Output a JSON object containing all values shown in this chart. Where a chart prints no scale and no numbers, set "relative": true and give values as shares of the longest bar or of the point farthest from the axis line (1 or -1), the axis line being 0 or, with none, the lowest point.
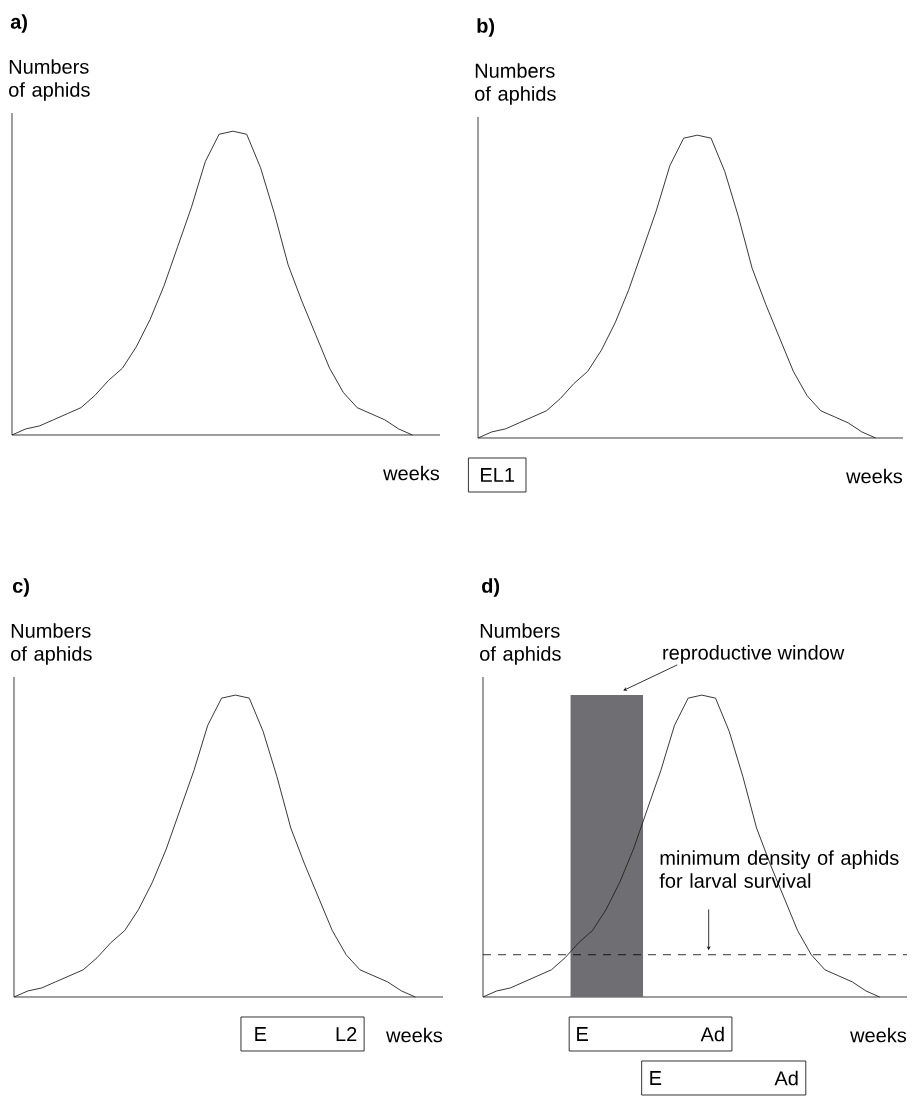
{
  "chart_data": [
    {
      "type": "line",
      "title": "a)",
      "ylabel": "Numbers of aphids",
      "xlabel": "weeks",
      "relative": true,
      "categories": [
        null,
        null,
        null,
        null,
        null,
        null,
        null,
        null,
        null,
        null,
        null,
        null,
        null,
        null,
        null,
        null,
        null,
        null,
        null,
        null,
        null,
        null,
        null,
        null,
        null,
        null,
        null,
        null,
        null,
        null,
        null,
        null
      ],
      "series": [
        {
          "color": "#222222",
          "values": [
            0,
            0.02,
            0.03,
            0.05,
            0.07,
            0.09,
            0.13,
            0.18,
            0.22,
            0.29,
            0.38,
            0.49,
            0.62,
            0.75,
            0.9,
            0.99,
            1,
            0.99,
            0.88,
            0.73,
            0.56,
            0.44,
            0.33,
            0.22,
            0.14,
            0.09,
            0.07,
            0.05,
            0.02,
            0,
            null,
            null
          ]
        }
      ]
    },
    {
      "type": "line",
      "title": "b)",
      "ylabel": "Numbers of aphids",
      "xlabel": "weeks",
      "relative": true,
      "categories": [
        null,
        null,
        null,
        null,
        null,
        null,
        null,
        null,
        null,
        null,
        null,
        null,
        null,
        null,
        null,
        null,
        null,
        null,
        null,
        null,
        null,
        null,
        null,
        null,
        null,
        null,
        null,
        null,
        null,
        null,
        null,
        null
      ],
      "series": [
        {
          "color": "#222222",
          "values": [
            0,
            0.02,
            0.03,
            0.05,
            0.07,
            0.09,
            0.13,
            0.18,
            0.22,
            0.29,
            0.38,
            0.49,
            0.62,
            0.75,
            0.9,
            0.99,
            1,
            0.99,
            0.88,
            0.73,
            0.56,
            0.44,
            0.33,
            0.22,
            0.14,
            0.09,
            0.07,
            0.05,
            0.02,
            0,
            null,
            null
          ]
        }
      ],
      "annotations": [
        "EL1"
      ]
    },
    {
      "type": "line",
      "title": "c)",
      "ylabel": "Numbers of aphids",
      "xlabel": "weeks",
      "relative": true,
      "categories": [
        null,
        null,
        null,
        null,
        null,
        null,
        null,
        null,
        null,
        null,
        null,
        null,
        null,
        null,
        null,
        null,
        null,
        null,
        null,
        null,
        null,
        null,
        null,
        null,
        null,
        null,
        null,
        null,
        null,
        null,
        null,
        null
      ],
      "series": [
        {
          "color": "#222222",
          "values": [
            0,
            0.02,
            0.03,
            0.05,
            0.07,
            0.09,
            0.13,
            0.18,
            0.22,
            0.29,
            0.38,
            0.49,
            0.62,
            0.75,
            0.9,
            0.99,
            1,
            0.99,
            0.88,
            0.73,
            0.56,
            0.44,
            0.33,
            0.22,
            0.14,
            0.09,
            0.07,
            0.05,
            0.02,
            0,
            null,
            null
          ]
        }
      ],
      "annotations": [
        "E",
        "L2"
      ]
    },
    {
      "type": "line",
      "title": "d)",
      "ylabel": "Numbers of aphids",
      "xlabel": "weeks",
      "relative": true,
      "categories": [
        null,
        null,
        null,
        null,
        null,
        null,
        null,
        null,
        null,
        null,
        null,
        null,
        null,
        null,
        null,
        null,
        null,
        null,
        null,
        null,
        null,
        null,
        null,
        null,
        null,
        null,
        null,
        null,
        null,
        null,
        null,
        null
      ],
      "series": [
        {
          "color": "#222222",
          "values": [
            0,
            0.02,
            0.03,
            0.05,
            0.07,
            0.09,
            0.13,
            0.18,
            0.22,
            0.29,
            0.38,
            0.49,
            0.62,
            0.75,
            0.9,
            0.99,
            1,
            0.99,
            0.88,
            0.73,
            0.56,
            0.44,
            0.33,
            0.22,
            0.14,
            0.09,
            0.07,
            0.05,
            0.02,
            0,
            null,
            null
          ]
        }
      ],
      "ref_lines": [
        {
          "axis": "y",
          "value": 0.14,
          "label": "minimum density of aphids for larval survival",
          "line_style": "dashed"
        }
      ],
      "annotations": [
        "E",
        "Ad",
        "E",
        "Ad",
        "reproductive window"
      ]
    }
  ]
}
